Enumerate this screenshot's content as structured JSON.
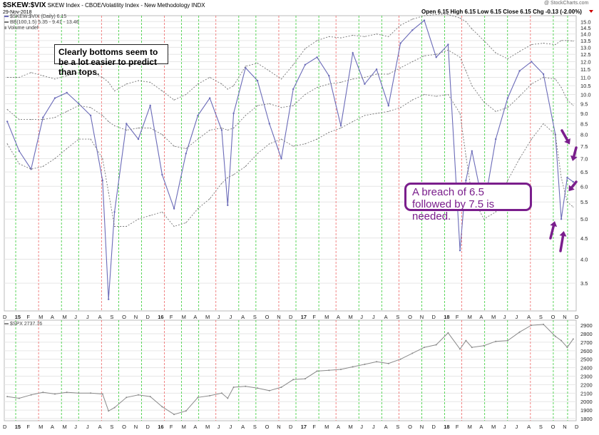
{
  "header": {
    "symbol": "$SKEW:$VIX",
    "description": "SKEW Index - CBOE/Volatility Index - New Methodology INDX",
    "date": "29-Nov-2018",
    "watermark": "@ StockCharts.com",
    "ohlc": "Open 6.15  High 6.15  Low 6.15  Close 6.15  Chg -0.13 (-2.00%)"
  },
  "legend": {
    "line1": "$SKEW:$VIX (Daily) 6.15",
    "line2": "BB(100,1.5) 5.35 - 9.41 - 13.46",
    "line3": "Volume undef"
  },
  "annotations": {
    "note": "Clearly bottoms seem to be a lot easier to predict than tops.",
    "callout": "A breach of 6.5 followed by 7.5 is needed."
  },
  "lower_panel": {
    "label": "$SPX 2737.76"
  },
  "colors": {
    "ratio_line": "#6b6bb8",
    "band_line": "#777777",
    "spx_line": "#8a8a8a",
    "green_vline": "#33cc33",
    "red_vline": "#ee6666",
    "arrow": "#7a1e8c",
    "grid": "#e6e6e6"
  },
  "chart_data": [
    {
      "type": "line",
      "title": "$SKEW:$VIX",
      "ylim": [
        3.0,
        15.5
      ],
      "y_scale": "log",
      "y_ticks": [
        3.5,
        4.0,
        4.5,
        5.0,
        5.5,
        6.0,
        6.5,
        7.0,
        7.5,
        8.0,
        8.5,
        9.0,
        9.5,
        10.0,
        10.5,
        11.0,
        11.5,
        12.0,
        12.5,
        13.0,
        13.5,
        14.0,
        14.5,
        15.0
      ],
      "x_tick_labels": [
        "D",
        "15",
        "F",
        "M",
        "A",
        "M",
        "J",
        "J",
        "A",
        "S",
        "O",
        "N",
        "D",
        "16",
        "F",
        "M",
        "A",
        "M",
        "J",
        "J",
        "A",
        "S",
        "O",
        "N",
        "D",
        "17",
        "F",
        "M",
        "A",
        "M",
        "J",
        "J",
        "A",
        "S",
        "O",
        "N",
        "D",
        "18",
        "F",
        "M",
        "A",
        "M",
        "J",
        "J",
        "A",
        "S",
        "O",
        "N",
        "D"
      ],
      "x": [
        "2014-12",
        "2015-01",
        "2015-02",
        "2015-03",
        "2015-04",
        "2015-05",
        "2015-06",
        "2015-07",
        "2015-08",
        "2015-08",
        "2015-09",
        "2015-10",
        "2015-11",
        "2015-12",
        "2016-01",
        "2016-02",
        "2016-03",
        "2016-04",
        "2016-05",
        "2016-06",
        "2016-06",
        "2016-07",
        "2016-08",
        "2016-09",
        "2016-10",
        "2016-11",
        "2016-12",
        "2017-01",
        "2017-02",
        "2017-03",
        "2017-04",
        "2017-05",
        "2017-06",
        "2017-07",
        "2017-08",
        "2017-09",
        "2017-10",
        "2017-11",
        "2017-12",
        "2018-01",
        "2018-02",
        "2018-02",
        "2018-03",
        "2018-04",
        "2018-05",
        "2018-06",
        "2018-07",
        "2018-08",
        "2018-09",
        "2018-10",
        "2018-10",
        "2018-11",
        "2018-11"
      ],
      "series": [
        {
          "name": "$SKEW:$VIX (Daily)",
          "values": [
            8.6,
            7.3,
            6.6,
            8.8,
            9.8,
            10.1,
            9.5,
            8.9,
            6.2,
            3.2,
            5.2,
            8.5,
            7.8,
            9.4,
            6.4,
            5.3,
            7.2,
            8.9,
            9.8,
            8.2,
            5.4,
            9.0,
            11.6,
            10.8,
            8.5,
            7.0,
            10.3,
            11.8,
            12.3,
            11.1,
            8.4,
            12.6,
            10.6,
            11.5,
            9.4,
            13.3,
            14.3,
            15.1,
            12.3,
            13.2,
            4.2,
            6.2,
            7.3,
            5.3,
            7.8,
            9.8,
            11.4,
            12.0,
            11.2,
            8.0,
            5.0,
            6.3,
            6.15
          ]
        },
        {
          "name": "BB upper",
          "values": [
            11.0,
            11.0,
            11.3,
            11.1,
            10.9,
            11.1,
            11.3,
            11.3,
            11.0,
            10.7,
            10.2,
            10.6,
            10.8,
            10.7,
            10.2,
            9.7,
            10.0,
            10.6,
            11.0,
            10.6,
            10.3,
            10.5,
            11.7,
            11.9,
            11.4,
            10.9,
            11.8,
            12.9,
            13.5,
            13.8,
            13.7,
            13.9,
            13.8,
            14.0,
            13.8,
            14.7,
            15.2,
            15.5,
            15.6,
            15.6,
            15.3,
            15.0,
            14.4,
            13.5,
            12.6,
            12.2,
            12.7,
            13.2,
            13.3,
            13.2,
            13.5,
            13.5,
            13.46
          ]
        },
        {
          "name": "BB middle",
          "values": [
            9.2,
            8.7,
            8.7,
            8.7,
            8.8,
            9.1,
            9.4,
            9.3,
            8.9,
            8.6,
            8.4,
            8.2,
            8.3,
            8.3,
            8.0,
            7.5,
            7.4,
            7.8,
            8.2,
            8.3,
            8.2,
            8.3,
            8.9,
            9.4,
            9.5,
            9.3,
            9.4,
            10.0,
            10.4,
            10.6,
            10.7,
            10.9,
            11.0,
            11.2,
            11.2,
            11.6,
            12.0,
            12.4,
            12.5,
            12.8,
            12.3,
            11.4,
            10.5,
            9.6,
            9.1,
            9.3,
            9.9,
            10.6,
            11.0,
            10.9,
            10.4,
            9.7,
            9.41
          ]
        },
        {
          "name": "BB lower",
          "values": [
            7.6,
            6.8,
            6.6,
            6.7,
            7.0,
            7.4,
            7.8,
            7.8,
            7.0,
            5.8,
            4.8,
            4.8,
            5.0,
            5.1,
            5.2,
            4.8,
            4.9,
            5.3,
            5.6,
            6.1,
            6.3,
            6.4,
            6.7,
            7.2,
            7.6,
            7.8,
            7.5,
            7.6,
            7.8,
            8.1,
            8.3,
            8.6,
            8.9,
            9.0,
            9.1,
            9.3,
            9.7,
            10.0,
            9.9,
            10.0,
            9.0,
            7.1,
            5.7,
            5.0,
            5.2,
            6.2,
            7.0,
            7.8,
            8.5,
            8.0,
            6.3,
            5.5,
            5.35
          ]
        }
      ]
    },
    {
      "type": "line",
      "title": "$SPX",
      "ylim": [
        1775,
        2960
      ],
      "y_ticks": [
        1800,
        1900,
        2000,
        2100,
        2200,
        2300,
        2400,
        2500,
        2600,
        2700,
        2800,
        2900
      ],
      "x_tick_labels": [
        "D",
        "15",
        "F",
        "M",
        "A",
        "M",
        "J",
        "J",
        "A",
        "S",
        "O",
        "N",
        "D",
        "16",
        "F",
        "M",
        "A",
        "M",
        "J",
        "J",
        "A",
        "S",
        "O",
        "N",
        "D",
        "17",
        "F",
        "M",
        "A",
        "M",
        "J",
        "J",
        "A",
        "S",
        "O",
        "N",
        "D",
        "18",
        "F",
        "M",
        "A",
        "M",
        "J",
        "J",
        "A",
        "S",
        "O",
        "N",
        "D"
      ],
      "x": [
        "2014-12",
        "2015-01",
        "2015-02",
        "2015-03",
        "2015-04",
        "2015-05",
        "2015-06",
        "2015-07",
        "2015-08",
        "2015-08",
        "2015-09",
        "2015-10",
        "2015-11",
        "2015-12",
        "2016-01",
        "2016-02",
        "2016-03",
        "2016-04",
        "2016-05",
        "2016-06",
        "2016-06",
        "2016-07",
        "2016-08",
        "2016-09",
        "2016-10",
        "2016-11",
        "2016-12",
        "2017-01",
        "2017-02",
        "2017-03",
        "2017-04",
        "2017-05",
        "2017-06",
        "2017-07",
        "2017-08",
        "2017-09",
        "2017-10",
        "2017-11",
        "2017-12",
        "2018-01",
        "2018-02",
        "2018-02",
        "2018-03",
        "2018-04",
        "2018-05",
        "2018-06",
        "2018-07",
        "2018-08",
        "2018-09",
        "2018-10",
        "2018-10",
        "2018-11",
        "2018-11"
      ],
      "series": [
        {
          "name": "$SPX",
          "values": [
            2060,
            2040,
            2080,
            2110,
            2090,
            2110,
            2100,
            2100,
            2090,
            1890,
            1930,
            2050,
            2080,
            2060,
            1940,
            1850,
            1890,
            2050,
            2070,
            2100,
            2040,
            2170,
            2180,
            2160,
            2130,
            2170,
            2260,
            2270,
            2360,
            2370,
            2380,
            2410,
            2440,
            2470,
            2450,
            2500,
            2570,
            2640,
            2670,
            2810,
            2620,
            2720,
            2640,
            2660,
            2710,
            2720,
            2820,
            2900,
            2910,
            2770,
            2720,
            2640,
            2737.76
          ]
        }
      ]
    }
  ]
}
